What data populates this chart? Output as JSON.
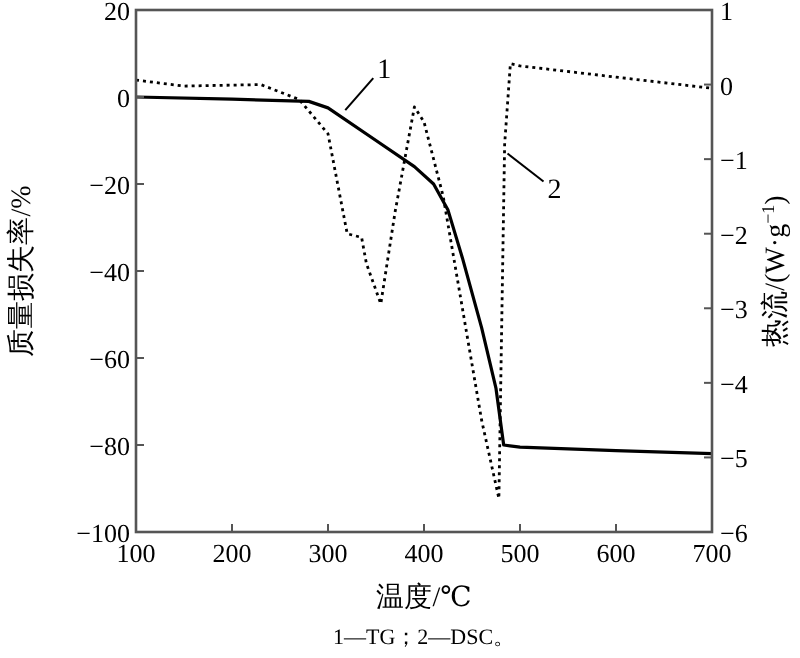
{
  "chart_data": {
    "type": "line",
    "xlabel": "温度/℃",
    "ylabel": "质量损失率/%",
    "y2label": "热流/(W·g$^{−1}$)",
    "xlim": [
      100,
      700
    ],
    "xticks": [
      100,
      200,
      300,
      400,
      500,
      600,
      700
    ],
    "ylim": [
      -100,
      20
    ],
    "yticks": [
      -100,
      -80,
      -60,
      -40,
      -20,
      0,
      20
    ],
    "y2lim": [
      -6,
      1
    ],
    "y2ticks": [
      -6,
      -5,
      -4,
      -3,
      -2,
      -1,
      0,
      1
    ],
    "grid": false,
    "series": [
      {
        "color": "#000000",
        "line_style": "solid",
        "x": [
          100,
          200,
          280,
          300,
          350,
          390,
          410,
          425,
          440,
          460,
          475,
          483,
          500,
          600,
          700
        ],
        "values": [
          0,
          -0.5,
          -1,
          -2.5,
          -10,
          -16,
          -20,
          -26,
          -37,
          -53,
          -67,
          -80,
          -80.5,
          -81.3,
          -82
        ]
      },
      {
        "color": "#000000",
        "line_style": "dotted",
        "axis": "y2",
        "x": [
          100,
          150,
          230,
          270,
          300,
          320,
          335,
          340,
          355,
          370,
          390,
          400,
          420,
          440,
          460,
          478,
          484,
          490,
          500,
          600,
          700
        ],
        "values": [
          0.06,
          -0.02,
          0.0,
          -0.2,
          -0.66,
          -2.0,
          -2.05,
          -2.4,
          -2.94,
          -1.7,
          -0.3,
          -0.5,
          -1.5,
          -3,
          -4.5,
          -5.55,
          -0.8,
          0.28,
          0.25,
          0.1,
          -0.05
        ]
      }
    ],
    "annotations": [
      {
        "text": "1",
        "x": 318,
        "y": -3
      },
      {
        "text": "2",
        "x": 487,
        "y": -13
      },
      "1—TG；2—DSC。"
    ]
  }
}
